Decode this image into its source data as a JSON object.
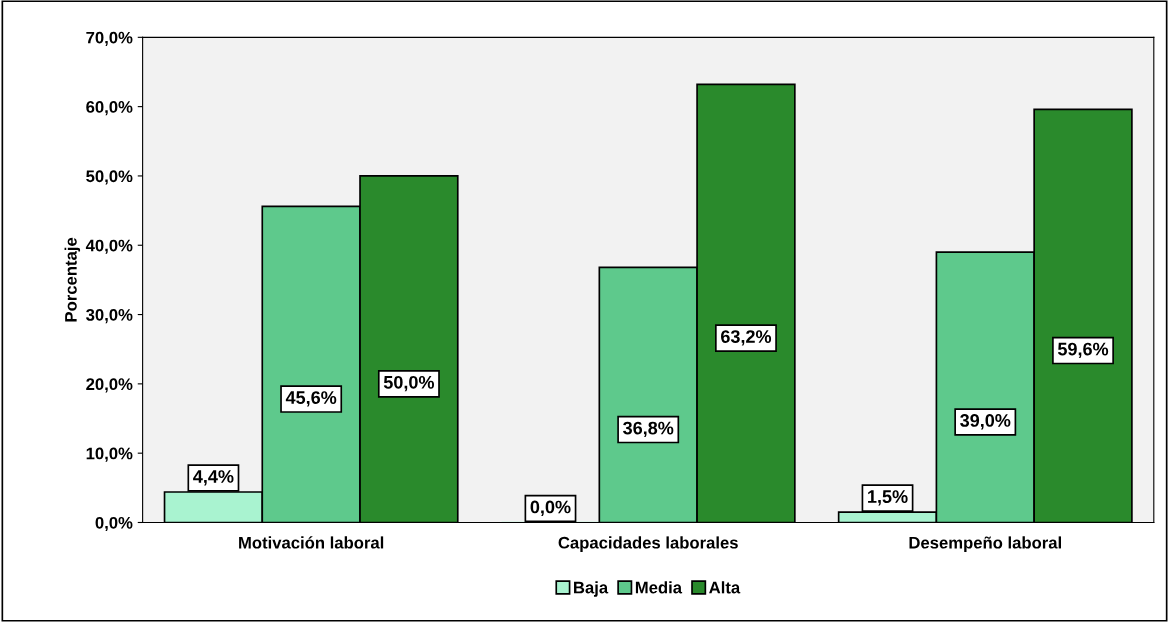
{
  "chart_data": {
    "type": "bar",
    "ylabel": "Porcentaje",
    "categories": [
      "Motivación laboral",
      "Capacidades laborales",
      "Desempeño laboral"
    ],
    "series": [
      {
        "name": "Baja",
        "color": "#a9f3d0",
        "values": [
          4.4,
          0.0,
          1.5
        ],
        "value_labels": [
          "4,4%",
          "0,0%",
          "1,5%"
        ]
      },
      {
        "name": "Media",
        "color": "#5ec98c",
        "values": [
          45.6,
          36.8,
          39.0
        ],
        "value_labels": [
          "45,6%",
          "36,8%",
          "39,0%"
        ]
      },
      {
        "name": "Alta",
        "color": "#2a8a2c",
        "values": [
          50.0,
          63.2,
          59.6
        ],
        "value_labels": [
          "50,0%",
          "63,2%",
          "59,6%"
        ]
      }
    ],
    "ylim": [
      0,
      70
    ],
    "yticks": [
      {
        "value": 0,
        "label": "0,0%"
      },
      {
        "value": 10,
        "label": "10,0%"
      },
      {
        "value": 20,
        "label": "20,0%"
      },
      {
        "value": 30,
        "label": "30,0%"
      },
      {
        "value": 40,
        "label": "40,0%"
      },
      {
        "value": 50,
        "label": "50,0%"
      },
      {
        "value": 60,
        "label": "60,0%"
      },
      {
        "value": 70,
        "label": "70,0%"
      }
    ],
    "grid": false,
    "legend": "bottom"
  }
}
